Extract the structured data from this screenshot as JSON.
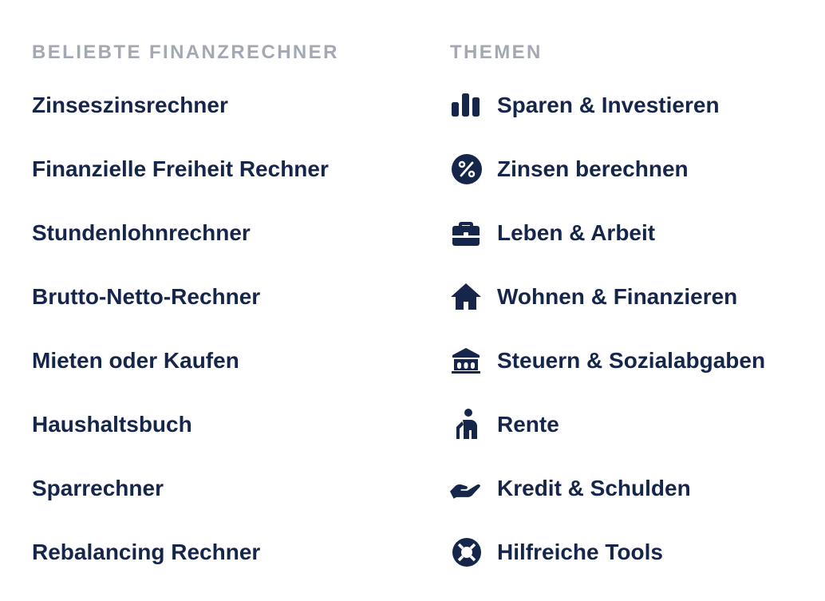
{
  "popular": {
    "heading": "BELIEBTE FINANZRECHNER",
    "items": [
      {
        "label": "Zinseszinsrechner"
      },
      {
        "label": "Finanzielle Freiheit Rechner"
      },
      {
        "label": "Stundenlohnrechner"
      },
      {
        "label": "Brutto-Netto-Rechner"
      },
      {
        "label": "Mieten oder Kaufen"
      },
      {
        "label": "Haushaltsbuch"
      },
      {
        "label": "Sparrechner"
      },
      {
        "label": "Rebalancing Rechner"
      }
    ]
  },
  "topics": {
    "heading": "THEMEN",
    "items": [
      {
        "label": "Sparen & Investieren",
        "icon": "bar-chart-icon"
      },
      {
        "label": "Zinsen berechnen",
        "icon": "percent-icon"
      },
      {
        "label": "Leben & Arbeit",
        "icon": "briefcase-icon"
      },
      {
        "label": "Wohnen & Finanzieren",
        "icon": "house-icon"
      },
      {
        "label": "Steuern & Sozialabgaben",
        "icon": "bank-icon"
      },
      {
        "label": "Rente",
        "icon": "elderly-person-icon"
      },
      {
        "label": "Kredit & Schulden",
        "icon": "open-hand-icon"
      },
      {
        "label": "Hilfreiche Tools",
        "icon": "lifebuoy-icon"
      }
    ]
  },
  "colors": {
    "text": "#16264a",
    "heading": "#a4a8b4",
    "background": "#ffffff"
  }
}
